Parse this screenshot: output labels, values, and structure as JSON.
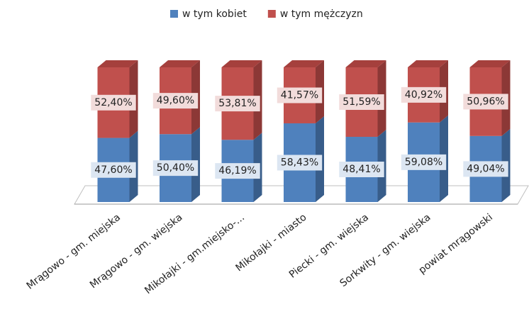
{
  "chart_data": {
    "type": "stacked_bar_3d",
    "categories": [
      "Mrągowo - gm. miejska",
      "Mrągowo - gm. wiejska",
      "Mikołajki - gm.miejsko-...",
      "Mikołajki - miasto",
      "Piecki - gm. wiejska",
      "Sorkwity - gm. wiejska",
      "powiat mrągowski"
    ],
    "series": [
      {
        "name": "w tym kobiet",
        "color": "#4f81bd",
        "side": "#385d8a",
        "values": [
          47.6,
          50.4,
          46.19,
          58.43,
          48.41,
          59.08,
          49.04
        ],
        "value_labels": [
          "47,60%",
          "50,40%",
          "46,19%",
          "58,43%",
          "48,41%",
          "59,08%",
          "49,04%"
        ]
      },
      {
        "name": "w tym mężczyzn",
        "color": "#c0504d",
        "side": "#8c3836",
        "top": "#a5403d",
        "values": [
          52.4,
          49.6,
          53.81,
          41.57,
          51.59,
          40.92,
          50.96
        ],
        "value_labels": [
          "52,40%",
          "49,60%",
          "53,81%",
          "41,57%",
          "51,59%",
          "40,92%",
          "50,96%"
        ]
      }
    ],
    "ylim": [
      0,
      100
    ],
    "legend": "top"
  }
}
